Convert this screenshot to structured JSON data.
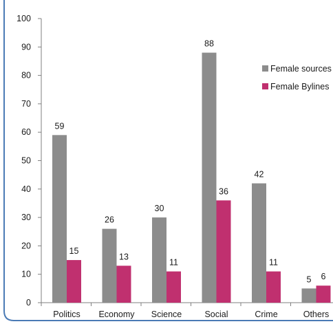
{
  "chart_data": {
    "type": "bar",
    "categories": [
      "Politics",
      "Economy",
      "Science",
      "Social",
      "Crime",
      "Others"
    ],
    "series": [
      {
        "name": "Female sources",
        "values": [
          59,
          26,
          30,
          88,
          42,
          5
        ],
        "color": "#8c8c8c"
      },
      {
        "name": "Female Bylines",
        "values": [
          15,
          13,
          11,
          36,
          11,
          6
        ],
        "color": "#c0306f"
      }
    ],
    "ylim": [
      0,
      100
    ],
    "yticks": [
      0,
      10,
      20,
      30,
      40,
      50,
      60,
      70,
      80,
      90,
      100
    ],
    "grid": false,
    "legend_position": "right",
    "data_labels": true
  },
  "colors": {
    "frame_border": "#4a7ab5",
    "axis": "#7f7f7f"
  }
}
